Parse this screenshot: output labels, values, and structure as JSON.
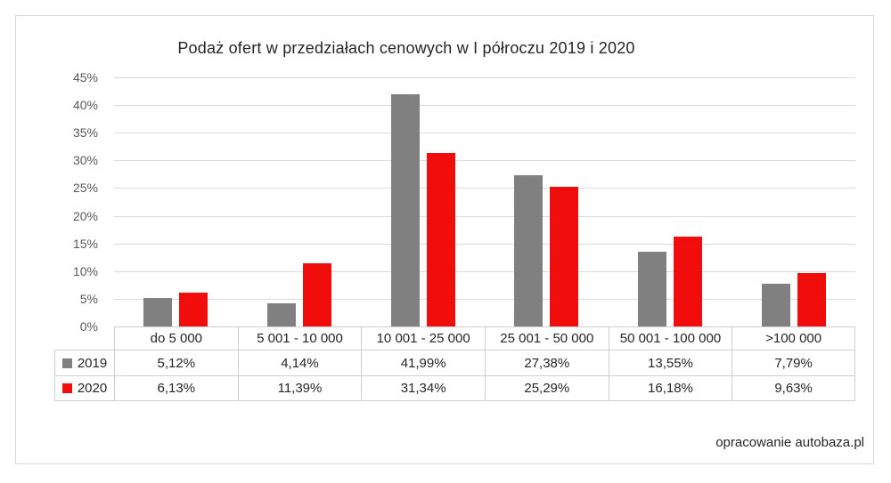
{
  "title": "Podaż ofert w przedziałach cenowych w I półroczu 2019 i 2020",
  "footer": "opracowanie autobaza.pl",
  "chart_data": {
    "type": "bar",
    "title": "Podaż ofert w przedziałach cenowych w I półroczu 2019 i 2020",
    "xlabel": "",
    "ylabel": "",
    "categories": [
      "do 5 000",
      "5 001 - 10 000",
      "10 001 - 25 000",
      "25 001 - 50 000",
      "50 001 - 100 000",
      ">100 000"
    ],
    "series": [
      {
        "name": "2019",
        "color": "#808080",
        "values": [
          5.12,
          4.14,
          41.99,
          27.38,
          13.55,
          7.79
        ],
        "display": [
          "5,12%",
          "4,14%",
          "41,99%",
          "27,38%",
          "13,55%",
          "7,79%"
        ]
      },
      {
        "name": "2020",
        "color": "#f20d0d",
        "values": [
          6.13,
          11.39,
          31.34,
          25.29,
          16.18,
          9.63
        ],
        "display": [
          "6,13%",
          "11,39%",
          "31,34%",
          "25,29%",
          "16,18%",
          "9,63%"
        ]
      }
    ],
    "ylim": [
      0,
      45
    ],
    "ytick_step": 5,
    "ytick_labels": [
      "0%",
      "5%",
      "10%",
      "15%",
      "20%",
      "25%",
      "30%",
      "35%",
      "40%",
      "45%"
    ],
    "grid": true,
    "legend_position": "table-left",
    "data_table_below": true
  }
}
